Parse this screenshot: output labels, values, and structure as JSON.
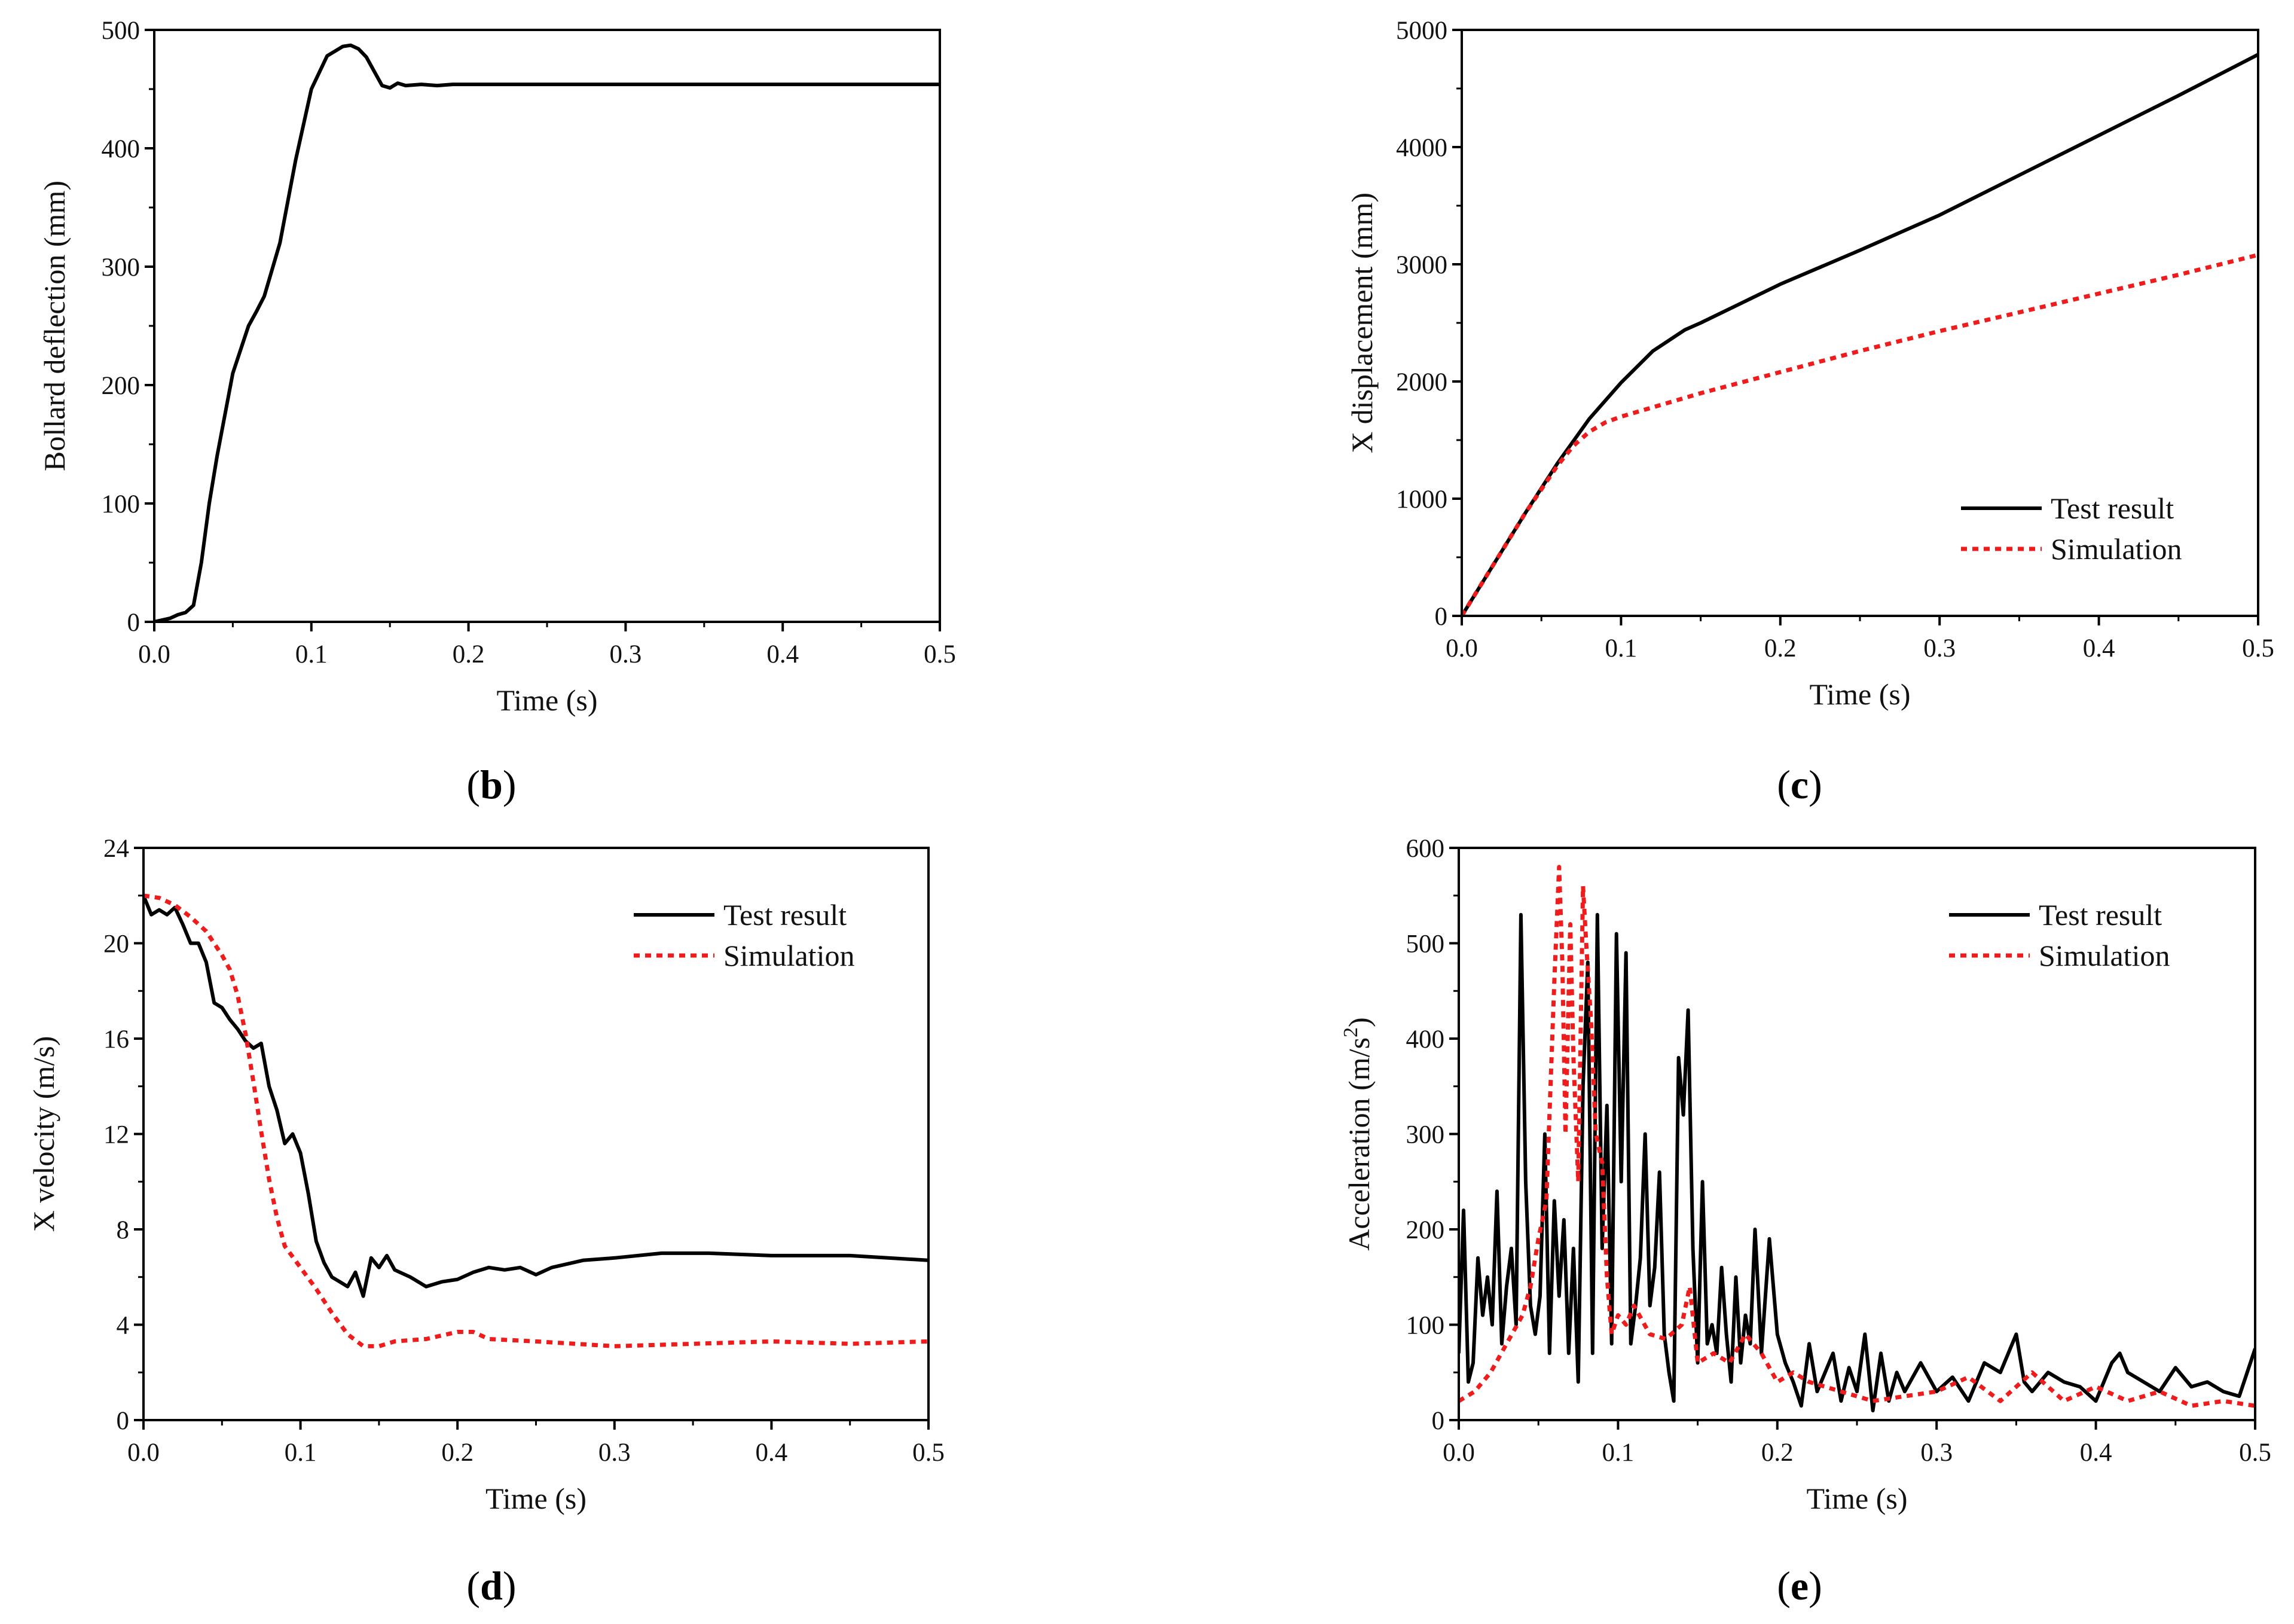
{
  "colors": {
    "test": "#000000",
    "simulation": "#ee1c1c"
  },
  "chart_data": [
    {
      "panel": "b",
      "type": "line",
      "xlabel": "Time (s)",
      "ylabel": "Bollard deflection (mm)",
      "xlim": [
        0,
        0.5
      ],
      "ylim": [
        0,
        500
      ],
      "xticks": [
        0,
        0.1,
        0.2,
        0.3,
        0.4,
        0.5
      ],
      "xtick_labels": [
        "0.0",
        "0.1",
        "0.2",
        "0.3",
        "0.4",
        "0.5"
      ],
      "yticks": [
        0,
        100,
        200,
        300,
        400,
        500
      ],
      "ytick_labels": [
        "0",
        "100",
        "200",
        "300",
        "400",
        "500"
      ],
      "panel_label": {
        "open": "(",
        "letter": "b",
        "close": ")"
      },
      "series": [
        {
          "name": "Bollard deflection",
          "style": "solid",
          "color": "#000000",
          "x": [
            0,
            0.01,
            0.015,
            0.02,
            0.025,
            0.03,
            0.035,
            0.04,
            0.05,
            0.06,
            0.065,
            0.07,
            0.08,
            0.09,
            0.1,
            0.11,
            0.12,
            0.125,
            0.13,
            0.135,
            0.14,
            0.145,
            0.15,
            0.155,
            0.16,
            0.17,
            0.18,
            0.19,
            0.2,
            0.3,
            0.4,
            0.5
          ],
          "y": [
            0,
            3,
            6,
            8,
            14,
            50,
            100,
            140,
            210,
            250,
            262,
            275,
            320,
            390,
            450,
            478,
            486,
            487,
            484,
            477,
            465,
            453,
            451,
            455,
            453,
            454,
            453,
            454,
            454,
            454,
            454,
            454
          ]
        }
      ]
    },
    {
      "panel": "c",
      "type": "line",
      "xlabel": "Time (s)",
      "ylabel": "X displacement (mm)",
      "xlim": [
        0,
        0.5
      ],
      "ylim": [
        0,
        5000
      ],
      "xticks": [
        0,
        0.1,
        0.2,
        0.3,
        0.4,
        0.5
      ],
      "xtick_labels": [
        "0.0",
        "0.1",
        "0.2",
        "0.3",
        "0.4",
        "0.5"
      ],
      "yticks": [
        0,
        1000,
        2000,
        3000,
        4000,
        5000
      ],
      "ytick_labels": [
        "0",
        "1000",
        "2000",
        "3000",
        "4000",
        "5000"
      ],
      "panel_label": {
        "open": "(",
        "letter": "c",
        "close": ")"
      },
      "legend": [
        "Test result",
        "Simulation"
      ],
      "series": [
        {
          "name": "Test result",
          "style": "solid",
          "color": "#000000",
          "x": [
            0,
            0.02,
            0.04,
            0.06,
            0.08,
            0.1,
            0.12,
            0.14,
            0.15,
            0.2,
            0.25,
            0.3,
            0.35,
            0.4,
            0.45,
            0.5
          ],
          "y": [
            0,
            440,
            880,
            1300,
            1680,
            1990,
            2260,
            2440,
            2500,
            2830,
            3120,
            3420,
            3760,
            4100,
            4440,
            4790
          ]
        },
        {
          "name": "Simulation",
          "style": "dotted",
          "color": "#ee1c1c",
          "x": [
            0,
            0.02,
            0.04,
            0.06,
            0.07,
            0.08,
            0.09,
            0.1,
            0.11,
            0.15,
            0.2,
            0.25,
            0.3,
            0.35,
            0.4,
            0.45,
            0.5
          ],
          "y": [
            0,
            440,
            880,
            1280,
            1450,
            1570,
            1650,
            1700,
            1740,
            1900,
            2080,
            2260,
            2430,
            2590,
            2750,
            2910,
            3080
          ]
        }
      ]
    },
    {
      "panel": "d",
      "type": "line",
      "xlabel": "Time (s)",
      "ylabel": "X velocity (m/s)",
      "xlim": [
        0,
        0.5
      ],
      "ylim": [
        0,
        24
      ],
      "xticks": [
        0,
        0.1,
        0.2,
        0.3,
        0.4,
        0.5
      ],
      "xtick_labels": [
        "0.0",
        "0.1",
        "0.2",
        "0.3",
        "0.4",
        "0.5"
      ],
      "yticks": [
        0,
        4,
        8,
        12,
        16,
        20,
        24
      ],
      "ytick_labels": [
        "0",
        "4",
        "8",
        "12",
        "16",
        "20",
        "24"
      ],
      "panel_label": {
        "open": "(",
        "letter": "d",
        "close": ")"
      },
      "legend": [
        "Test result",
        "Simulation"
      ],
      "series": [
        {
          "name": "Test result",
          "style": "solid",
          "color": "#000000",
          "x": [
            0,
            0.005,
            0.01,
            0.015,
            0.02,
            0.025,
            0.03,
            0.035,
            0.04,
            0.045,
            0.05,
            0.055,
            0.06,
            0.065,
            0.07,
            0.075,
            0.08,
            0.085,
            0.09,
            0.095,
            0.1,
            0.105,
            0.11,
            0.115,
            0.12,
            0.125,
            0.13,
            0.135,
            0.14,
            0.145,
            0.15,
            0.155,
            0.16,
            0.17,
            0.18,
            0.19,
            0.2,
            0.21,
            0.22,
            0.23,
            0.24,
            0.25,
            0.26,
            0.28,
            0.3,
            0.33,
            0.36,
            0.4,
            0.45,
            0.5
          ],
          "y": [
            22,
            21.2,
            21.4,
            21.2,
            21.5,
            20.8,
            20,
            20,
            19.2,
            17.5,
            17.3,
            16.8,
            16.4,
            15.9,
            15.6,
            15.8,
            14,
            13,
            11.6,
            12,
            11.2,
            9.5,
            7.5,
            6.6,
            6,
            5.8,
            5.6,
            6.2,
            5.2,
            6.8,
            6.4,
            6.9,
            6.3,
            6,
            5.6,
            5.8,
            5.9,
            6.2,
            6.4,
            6.3,
            6.4,
            6.1,
            6.4,
            6.7,
            6.8,
            7,
            7,
            6.9,
            6.9,
            6.7
          ]
        },
        {
          "name": "Simulation",
          "style": "dotted",
          "color": "#ee1c1c",
          "x": [
            0,
            0.01,
            0.02,
            0.03,
            0.04,
            0.05,
            0.055,
            0.06,
            0.065,
            0.07,
            0.075,
            0.08,
            0.085,
            0.09,
            0.1,
            0.11,
            0.12,
            0.13,
            0.14,
            0.15,
            0.16,
            0.18,
            0.2,
            0.21,
            0.22,
            0.25,
            0.3,
            0.35,
            0.4,
            0.45,
            0.5
          ],
          "y": [
            22,
            21.9,
            21.6,
            21.1,
            20.5,
            19.5,
            18.9,
            17.8,
            16.2,
            14.2,
            12.1,
            10.1,
            8.5,
            7.3,
            6.4,
            5.5,
            4.5,
            3.6,
            3.1,
            3.1,
            3.3,
            3.4,
            3.7,
            3.7,
            3.4,
            3.3,
            3.1,
            3.2,
            3.3,
            3.2,
            3.3
          ]
        }
      ]
    },
    {
      "panel": "e",
      "type": "line",
      "xlabel": "Time (s)",
      "ylabel": "Acceleration (m/s",
      "ylabel_sup": "2",
      "ylabel_close": ")",
      "xlim": [
        0,
        0.5
      ],
      "ylim": [
        0,
        600
      ],
      "xticks": [
        0,
        0.1,
        0.2,
        0.3,
        0.4,
        0.5
      ],
      "xtick_labels": [
        "0.0",
        "0.1",
        "0.2",
        "0.3",
        "0.4",
        "0.5"
      ],
      "yticks": [
        0,
        100,
        200,
        300,
        400,
        500,
        600
      ],
      "ytick_labels": [
        "0",
        "100",
        "200",
        "300",
        "400",
        "500",
        "600"
      ],
      "panel_label": {
        "open": "(",
        "letter": "e",
        "close": ")"
      },
      "legend": [
        "Test result",
        "Simulation"
      ],
      "series": [
        {
          "name": "Test result",
          "style": "solid",
          "color": "#000000",
          "x": [
            0,
            0.003,
            0.006,
            0.009,
            0.012,
            0.015,
            0.018,
            0.021,
            0.024,
            0.027,
            0.03,
            0.033,
            0.036,
            0.039,
            0.042,
            0.045,
            0.048,
            0.051,
            0.054,
            0.057,
            0.06,
            0.063,
            0.066,
            0.069,
            0.072,
            0.075,
            0.078,
            0.081,
            0.084,
            0.087,
            0.09,
            0.093,
            0.096,
            0.099,
            0.102,
            0.105,
            0.108,
            0.111,
            0.114,
            0.117,
            0.12,
            0.123,
            0.126,
            0.129,
            0.132,
            0.135,
            0.138,
            0.141,
            0.144,
            0.147,
            0.15,
            0.153,
            0.156,
            0.159,
            0.162,
            0.165,
            0.168,
            0.171,
            0.174,
            0.177,
            0.18,
            0.183,
            0.186,
            0.19,
            0.195,
            0.2,
            0.205,
            0.21,
            0.215,
            0.22,
            0.225,
            0.23,
            0.235,
            0.24,
            0.245,
            0.25,
            0.255,
            0.26,
            0.265,
            0.27,
            0.275,
            0.28,
            0.29,
            0.3,
            0.31,
            0.32,
            0.33,
            0.34,
            0.35,
            0.355,
            0.36,
            0.37,
            0.38,
            0.39,
            0.4,
            0.41,
            0.415,
            0.42,
            0.43,
            0.44,
            0.45,
            0.46,
            0.47,
            0.48,
            0.49,
            0.5
          ],
          "y": [
            70,
            220,
            40,
            60,
            170,
            110,
            150,
            100,
            240,
            80,
            140,
            180,
            100,
            530,
            250,
            120,
            90,
            130,
            300,
            70,
            230,
            130,
            210,
            70,
            180,
            40,
            350,
            480,
            70,
            530,
            180,
            330,
            80,
            510,
            250,
            490,
            80,
            120,
            170,
            300,
            120,
            160,
            260,
            90,
            50,
            20,
            380,
            320,
            430,
            180,
            60,
            250,
            80,
            100,
            70,
            160,
            90,
            40,
            150,
            60,
            110,
            80,
            200,
            70,
            190,
            90,
            60,
            40,
            15,
            80,
            30,
            50,
            70,
            20,
            55,
            30,
            90,
            10,
            70,
            20,
            50,
            30,
            60,
            30,
            45,
            20,
            60,
            50,
            90,
            40,
            30,
            50,
            40,
            35,
            20,
            60,
            70,
            50,
            40,
            30,
            55,
            35,
            40,
            30,
            25,
            75
          ]
        },
        {
          "name": "Simulation",
          "style": "dotted",
          "color": "#ee1c1c",
          "x": [
            0,
            0.01,
            0.02,
            0.03,
            0.04,
            0.045,
            0.05,
            0.055,
            0.06,
            0.063,
            0.065,
            0.067,
            0.07,
            0.072,
            0.075,
            0.078,
            0.08,
            0.083,
            0.086,
            0.09,
            0.093,
            0.096,
            0.1,
            0.105,
            0.11,
            0.12,
            0.13,
            0.14,
            0.145,
            0.15,
            0.16,
            0.17,
            0.18,
            0.19,
            0.2,
            0.21,
            0.22,
            0.24,
            0.26,
            0.28,
            0.3,
            0.32,
            0.34,
            0.36,
            0.38,
            0.4,
            0.42,
            0.44,
            0.46,
            0.48,
            0.5
          ],
          "y": [
            20,
            30,
            50,
            80,
            110,
            140,
            190,
            230,
            460,
            580,
            480,
            300,
            520,
            380,
            250,
            560,
            500,
            420,
            300,
            270,
            150,
            90,
            110,
            100,
            120,
            90,
            85,
            100,
            140,
            60,
            70,
            60,
            90,
            70,
            40,
            50,
            40,
            30,
            20,
            25,
            30,
            45,
            20,
            50,
            20,
            35,
            20,
            30,
            15,
            20,
            15
          ]
        }
      ]
    }
  ]
}
